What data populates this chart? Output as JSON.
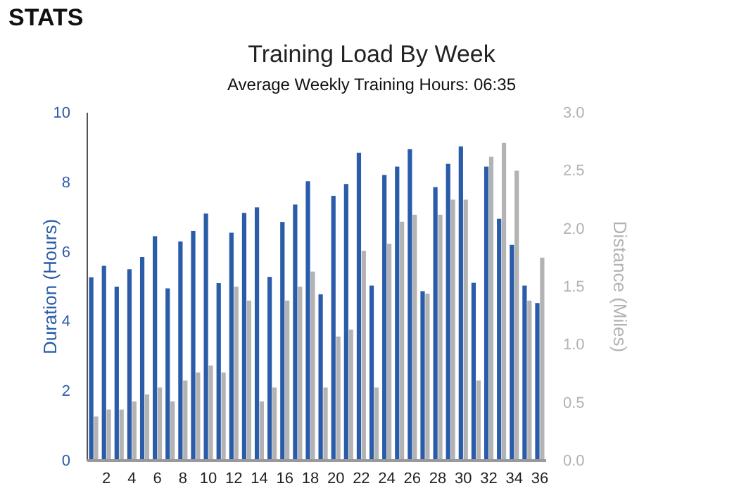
{
  "chart_data": {
    "type": "bar",
    "title": "Training Load By Week",
    "subtitle": "Average Weekly Training Hours: 06:35",
    "annotations": [
      "STATS"
    ],
    "ylabel": "Duration (Hours)",
    "y2label": "Distance (Miles)",
    "x": [
      1,
      2,
      3,
      4,
      5,
      6,
      7,
      8,
      9,
      10,
      11,
      12,
      13,
      14,
      15,
      16,
      17,
      18,
      19,
      20,
      21,
      22,
      23,
      24,
      25,
      26,
      27,
      28,
      29,
      30,
      31,
      32,
      33,
      34,
      35,
      36
    ],
    "xlim": [
      0.5,
      36.5
    ],
    "xticks": [
      2,
      4,
      6,
      8,
      10,
      12,
      14,
      16,
      18,
      20,
      22,
      24,
      26,
      28,
      30,
      32,
      34,
      36
    ],
    "series": [
      {
        "color": "#2a5caa",
        "values": [
          5.27,
          5.6,
          5.0,
          5.5,
          5.85,
          6.45,
          4.95,
          6.3,
          6.6,
          7.1,
          5.1,
          6.55,
          7.12,
          7.28,
          5.28,
          6.86,
          7.36,
          8.03,
          4.78,
          7.61,
          7.95,
          8.85,
          5.03,
          8.21,
          8.45,
          8.95,
          4.87,
          7.86,
          8.53,
          9.03,
          5.11,
          8.45,
          6.95,
          6.2,
          5.03,
          4.53
        ]
      },
      {
        "color": "#b3b3b3",
        "axis": "y2",
        "values": [
          0.38,
          0.44,
          0.44,
          0.51,
          0.57,
          0.63,
          0.51,
          0.69,
          0.76,
          0.82,
          0.76,
          1.5,
          1.38,
          0.51,
          0.63,
          1.38,
          1.5,
          1.63,
          0.63,
          1.07,
          1.13,
          1.81,
          0.63,
          1.87,
          2.06,
          2.12,
          1.44,
          2.12,
          2.25,
          2.25,
          0.69,
          2.62,
          2.74,
          2.5,
          1.38,
          1.75
        ]
      }
    ],
    "ylim": [
      0,
      10
    ],
    "yticks": [
      0,
      2,
      4,
      6,
      8,
      10
    ],
    "y2lim": [
      0,
      3
    ],
    "y2ticks": [
      {
        "value": 0,
        "label": "0.0"
      },
      {
        "value": 0.5,
        "label": "0.5"
      },
      {
        "value": 1,
        "label": "1.0"
      },
      {
        "value": 1.5,
        "label": "1.5"
      },
      {
        "value": 2,
        "label": "2.0"
      },
      {
        "value": 2.5,
        "label": "2.5"
      },
      {
        "value": 3,
        "label": "3.0"
      }
    ],
    "grid": false
  }
}
